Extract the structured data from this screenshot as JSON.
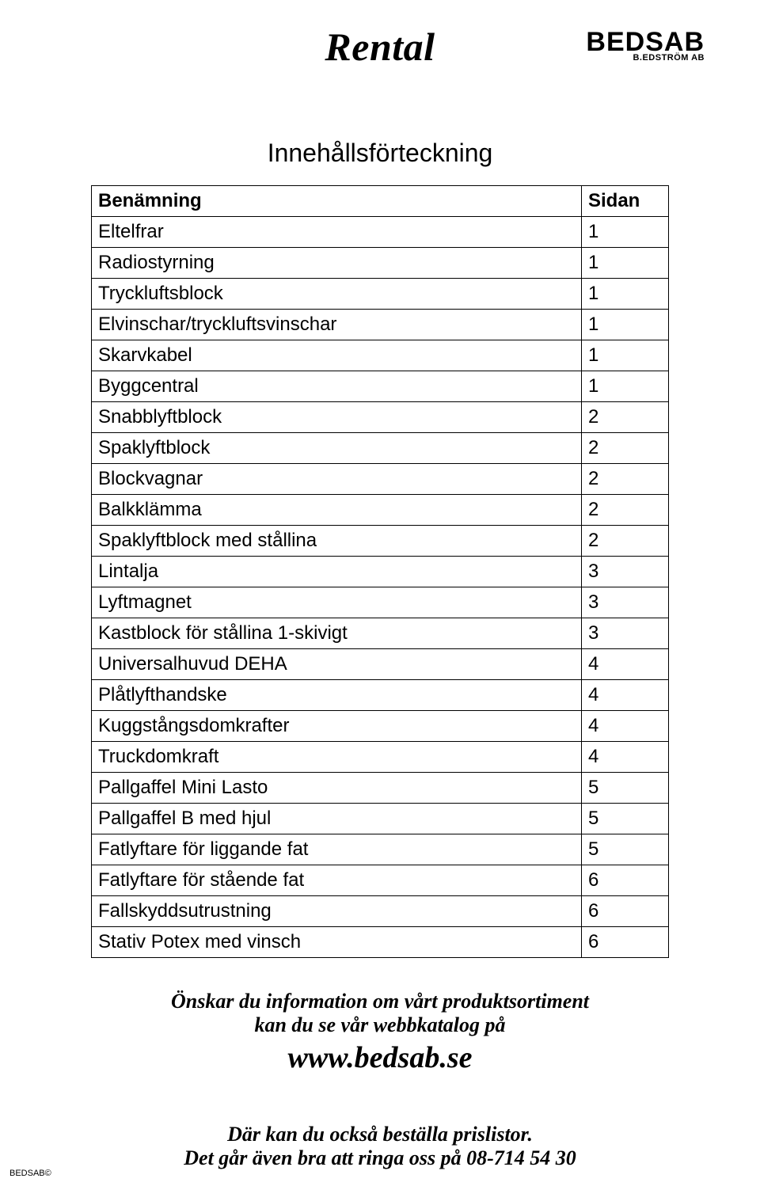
{
  "title": "Rental",
  "logo": {
    "main": "BEDSAB",
    "sub": "B.EDSTRÖM  AB"
  },
  "subtitle": "Innehållsförteckning",
  "table": {
    "columns": [
      "Benämning",
      "Sidan"
    ],
    "rows": [
      [
        "Eltelfrar",
        "1"
      ],
      [
        "Radiostyrning",
        "1"
      ],
      [
        "Tryckluftsblock",
        "1"
      ],
      [
        "Elvinschar/tryckluftsvinschar",
        "1"
      ],
      [
        "Skarvkabel",
        "1"
      ],
      [
        "Byggcentral",
        "1"
      ],
      [
        "Snabblyftblock",
        "2"
      ],
      [
        "Spaklyftblock",
        "2"
      ],
      [
        "Blockvagnar",
        "2"
      ],
      [
        "Balkklämma",
        "2"
      ],
      [
        "Spaklyftblock med stållina",
        "2"
      ],
      [
        "Lintalja",
        "3"
      ],
      [
        "Lyftmagnet",
        "3"
      ],
      [
        "Kastblock för stållina 1-skivigt",
        "3"
      ],
      [
        "Universalhuvud DEHA",
        "4"
      ],
      [
        "Plåtlyfthandske",
        "4"
      ],
      [
        "Kuggstångsdomkrafter",
        "4"
      ],
      [
        "Truckdomkraft",
        "4"
      ],
      [
        "Pallgaffel Mini Lasto",
        "5"
      ],
      [
        "Pallgaffel B med hjul",
        "5"
      ],
      [
        "Fatlyftare för liggande fat",
        "5"
      ],
      [
        "Fatlyftare för stående fat",
        "6"
      ],
      [
        "Fallskyddsutrustning",
        "6"
      ],
      [
        "Stativ Potex med vinsch",
        "6"
      ]
    ]
  },
  "info": {
    "line1": "Önskar du information om vårt produktsortiment",
    "line2": "kan du se vår webbkatalog på",
    "url": "www.bedsab.se"
  },
  "order": {
    "line1": "Där kan du också beställa prislistor.",
    "line2": "Det går även bra att ringa oss på 08-714 54 30"
  },
  "footer": "BEDSAB©"
}
